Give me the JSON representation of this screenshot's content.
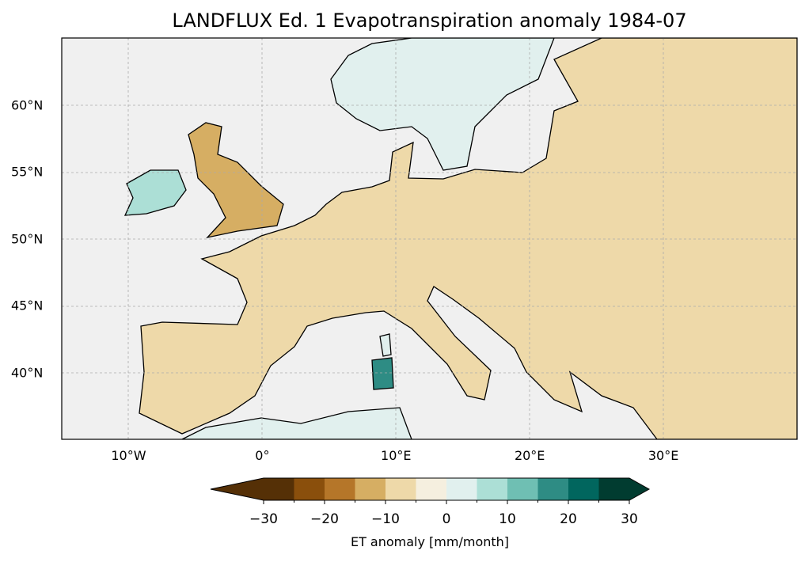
{
  "title": "LANDFLUX Ed. 1 Evapotranspiration anomaly 1984-07",
  "map": {
    "extent_lon": [
      -15,
      40
    ],
    "extent_lat": [
      35,
      65
    ],
    "x_ticks": [
      {
        "lon": -10,
        "label": "10°W"
      },
      {
        "lon": 0,
        "label": "0°"
      },
      {
        "lon": 10,
        "label": "10°E"
      },
      {
        "lon": 20,
        "label": "20°E"
      },
      {
        "lon": 30,
        "label": "30°E"
      }
    ],
    "y_ticks": [
      {
        "lat": 60,
        "label": "60°N"
      },
      {
        "lat": 55,
        "label": "55°N"
      },
      {
        "lat": 50,
        "label": "50°N"
      },
      {
        "lat": 45,
        "label": "45°N"
      },
      {
        "lat": 40,
        "label": "40°N"
      }
    ],
    "ocean_color": "#f0f0f0"
  },
  "colorbar": {
    "label": "ET anomaly [mm/month]",
    "bounds": [
      -30,
      -25,
      -20,
      -15,
      -10,
      -5,
      0,
      5,
      10,
      15,
      20,
      25,
      30
    ],
    "tick_labels": [
      {
        "v": -30,
        "t": "−30"
      },
      {
        "v": -20,
        "t": "−20"
      },
      {
        "v": -10,
        "t": "−10"
      },
      {
        "v": 0,
        "t": "0"
      },
      {
        "v": 10,
        "t": "10"
      },
      {
        "v": 20,
        "t": "20"
      },
      {
        "v": 30,
        "t": "30"
      }
    ],
    "colors": [
      "#553006",
      "#8a4f0c",
      "#b57629",
      "#d6ae63",
      "#eed9a9",
      "#f5efdf",
      "#e1f0ee",
      "#acdfd6",
      "#6fbfb3",
      "#2e8c84",
      "#01665e",
      "#013c30"
    ],
    "extend": "both"
  }
}
